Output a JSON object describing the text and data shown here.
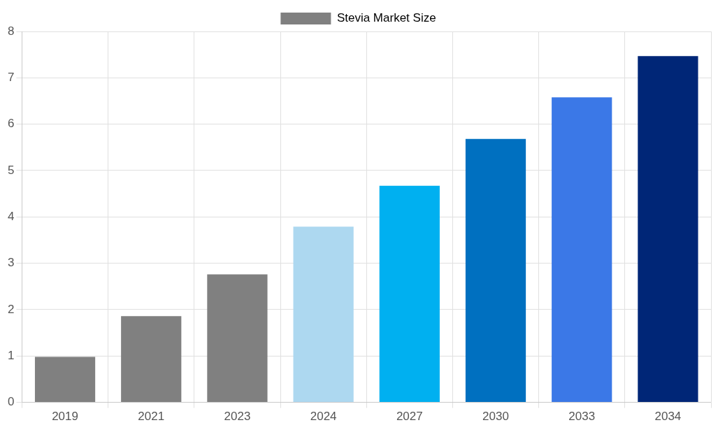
{
  "chart_data": {
    "type": "bar",
    "categories": [
      "2019",
      "2021",
      "2023",
      "2024",
      "2027",
      "2030",
      "2033",
      "2034"
    ],
    "series": [
      {
        "name": "Stevia Market Size",
        "color": "#808080",
        "colors": [
          "#808080",
          "#808080",
          "#808080",
          "#add8f0",
          "#00b0f0",
          "#0070c0",
          "#3b78e7",
          "#002677"
        ],
        "values": [
          0.98,
          1.86,
          2.76,
          3.79,
          4.67,
          5.68,
          6.58,
          7.47
        ]
      }
    ],
    "ylim": [
      0,
      8
    ],
    "yticks": [
      0,
      1,
      2,
      3,
      4,
      5,
      6,
      7,
      8
    ],
    "grid": true,
    "legend": "top"
  }
}
